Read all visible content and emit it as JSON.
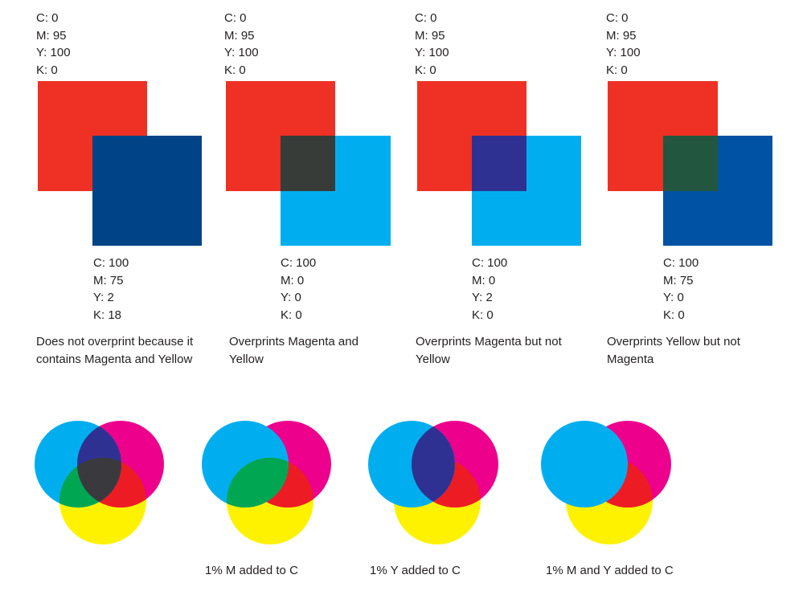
{
  "colors": {
    "red": "#ee3124",
    "cyan": "#00aeef",
    "navy_100_75_2_18": "#004386",
    "blue_100_75_0_0": "#0052a4",
    "yellow": "#fff200",
    "magenta": "#ec008c",
    "overlap_cyan_red": "#373c39",
    "overlap_cyan_magenta": "#2e3192",
    "overlap_blue_yellow": "#22563f",
    "overlap_cyan_yellow": "#00a651",
    "overlap_center": "#3a3a3e",
    "overlap_magenta_yellow": "#ed1c24"
  },
  "panels": [
    {
      "top_spec": {
        "c": "C: 0",
        "m": "M: 95",
        "y": "Y: 100",
        "k": "K: 0"
      },
      "bottom_spec": {
        "c": "C: 100",
        "m": "M: 75",
        "y": "Y: 2",
        "k": "K: 18"
      },
      "caption": "Does not overprint because it contains Magenta and Yellow"
    },
    {
      "top_spec": {
        "c": "C: 0",
        "m": "M: 95",
        "y": "Y: 100",
        "k": "K: 0"
      },
      "bottom_spec": {
        "c": "C: 100",
        "m": "M: 0",
        "y": "Y: 0",
        "k": "K: 0"
      },
      "caption": "Overprints Magenta and Yellow"
    },
    {
      "top_spec": {
        "c": "C: 0",
        "m": "M: 95",
        "y": "Y: 100",
        "k": "K: 0"
      },
      "bottom_spec": {
        "c": "C: 100",
        "m": "M: 0",
        "y": "Y: 2",
        "k": "K: 0"
      },
      "caption": "Overprints Magenta but not Yellow"
    },
    {
      "top_spec": {
        "c": "C: 0",
        "m": "M: 95",
        "y": "Y: 100",
        "k": "K: 0"
      },
      "bottom_spec": {
        "c": "C: 100",
        "m": "M: 75",
        "y": "Y: 0",
        "k": "K: 0"
      },
      "caption": "Overprints Yellow but not Magenta"
    }
  ],
  "venn_captions": [
    "1% M added to C",
    "1% Y added to C",
    "1% M and Y added to C"
  ]
}
